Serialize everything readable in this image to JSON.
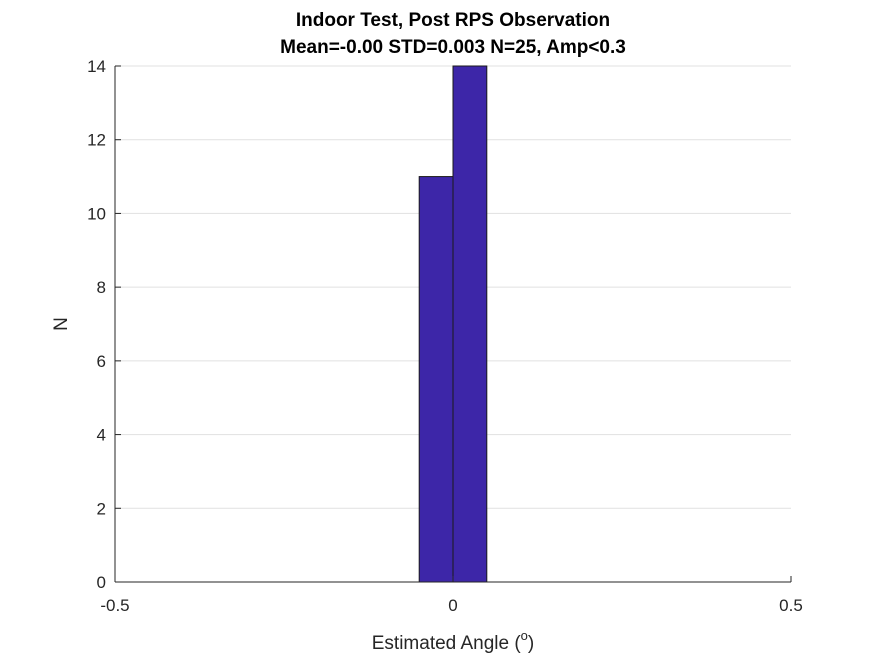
{
  "chart_data": {
    "type": "bar",
    "title_line1": "Indoor Test, Post RPS Observation",
    "title_line2": "Mean=-0.00 STD=0.003 N=25, Amp<0.3",
    "xlabel_text": "Estimated Angle (",
    "xlabel_sup": "o",
    "xlabel_close": ")",
    "ylabel": "N",
    "xlim": [
      -0.5,
      0.5
    ],
    "ylim": [
      0,
      14
    ],
    "xticks": [
      "-0.5",
      "0",
      "0.5"
    ],
    "xtick_values": [
      -0.5,
      0,
      0.5
    ],
    "yticks": [
      "0",
      "2",
      "4",
      "6",
      "8",
      "10",
      "12",
      "14"
    ],
    "ytick_values": [
      0,
      2,
      4,
      6,
      8,
      10,
      12,
      14
    ],
    "bins": [
      {
        "left": -0.05,
        "right": 0.0,
        "value": 11
      },
      {
        "left": 0.0,
        "right": 0.05,
        "value": 14
      }
    ],
    "grid": true,
    "colors": {
      "bar_fill": "#3D26A8",
      "bar_edge": "#1a1a1a",
      "grid": "#e1e1e1",
      "axis": "#262626"
    }
  }
}
